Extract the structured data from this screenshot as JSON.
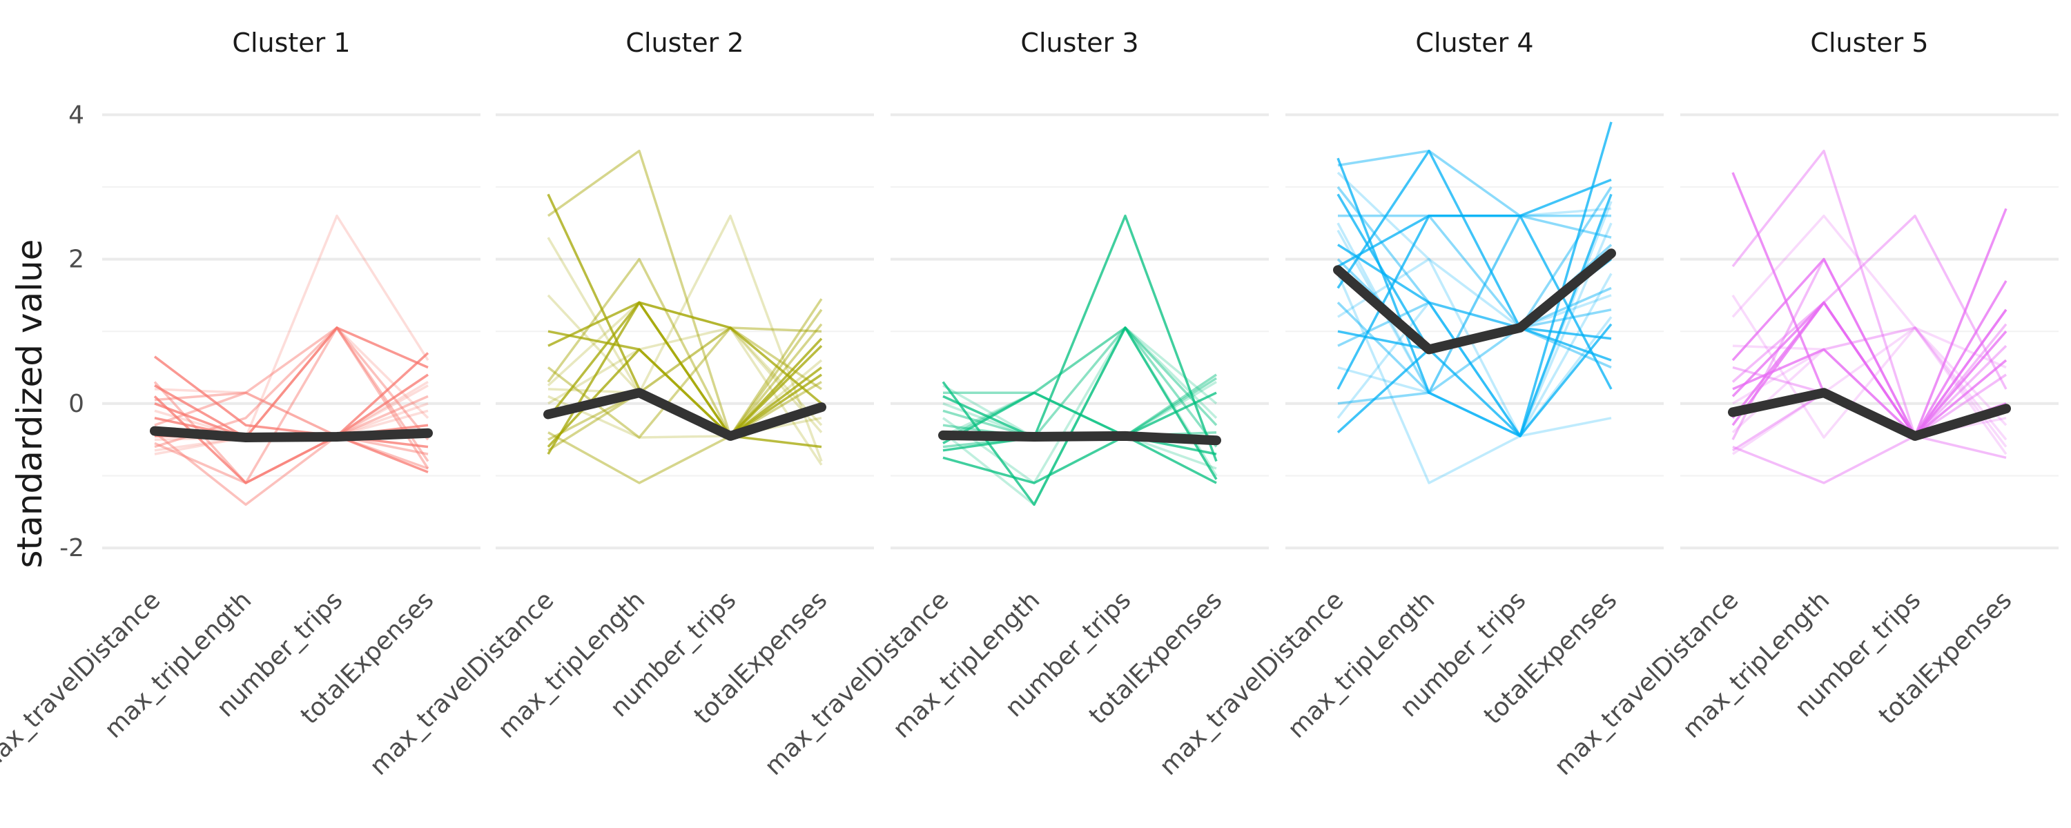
{
  "chart_data": {
    "type": "line",
    "subtype": "faceted-parallel-coordinates",
    "ylabel": "standardized value",
    "xlabel": "",
    "ylim": [
      -2.2,
      4.3
    ],
    "y_ticks": [
      4,
      2,
      0,
      -2
    ],
    "y_tick_labels": [
      "4",
      "2",
      "0",
      "-2"
    ],
    "grid": true,
    "categories": [
      "max_travelDistance",
      "max_tripLength",
      "number_trips",
      "totalExpenses"
    ],
    "mean_line_color": "#333333",
    "facets": [
      {
        "name": "Cluster 1",
        "color": "#F8766D",
        "mean": [
          -0.38,
          -0.47,
          -0.46,
          -0.41
        ],
        "profiles": [
          [
            0.65,
            -0.3,
            -0.45,
            0.7
          ],
          [
            0.3,
            -1.1,
            1.05,
            -0.9
          ],
          [
            0.2,
            0.15,
            -0.45,
            0.3
          ],
          [
            -0.2,
            -0.47,
            1.05,
            0.5
          ],
          [
            -0.4,
            -1.4,
            -0.45,
            0.1
          ],
          [
            -0.5,
            -0.47,
            2.6,
            0.6
          ],
          [
            0.0,
            -0.47,
            -0.45,
            -0.95
          ],
          [
            -0.6,
            -0.2,
            1.05,
            -0.5
          ],
          [
            -0.7,
            -0.47,
            -0.45,
            0.0
          ],
          [
            0.1,
            -1.1,
            -0.45,
            -0.6
          ],
          [
            -0.3,
            0.15,
            1.05,
            -0.8
          ],
          [
            -0.65,
            -0.47,
            -0.45,
            0.25
          ],
          [
            0.25,
            -0.47,
            -0.45,
            -0.3
          ],
          [
            -0.55,
            -1.1,
            -0.45,
            -0.7
          ],
          [
            -0.1,
            -0.47,
            1.05,
            -0.2
          ],
          [
            -0.45,
            -0.47,
            -0.45,
            0.4
          ],
          [
            0.05,
            0.15,
            -0.45,
            -0.9
          ],
          [
            -0.35,
            -0.47,
            -0.45,
            -0.1
          ]
        ]
      },
      {
        "name": "Cluster 2",
        "color": "#A3A500",
        "mean": [
          -0.15,
          0.15,
          -0.45,
          -0.05
        ],
        "profiles": [
          [
            2.9,
            0.2,
            -0.45,
            0.9
          ],
          [
            2.6,
            3.5,
            -0.45,
            1.3
          ],
          [
            2.3,
            0.15,
            2.6,
            -0.8
          ],
          [
            0.8,
            1.4,
            1.05,
            0.0
          ],
          [
            0.3,
            2.0,
            -0.45,
            1.1
          ],
          [
            0.0,
            0.75,
            1.05,
            -0.3
          ],
          [
            -0.7,
            1.4,
            -0.45,
            0.5
          ],
          [
            -0.4,
            -1.1,
            -0.45,
            1.45
          ],
          [
            0.2,
            0.15,
            1.05,
            -0.85
          ],
          [
            -0.6,
            0.75,
            -0.45,
            0.8
          ],
          [
            0.5,
            -0.47,
            1.05,
            0.2
          ],
          [
            1.5,
            0.15,
            -0.45,
            0.6
          ],
          [
            -0.2,
            1.4,
            -0.45,
            -0.6
          ],
          [
            -0.5,
            0.15,
            1.05,
            1.0
          ],
          [
            0.1,
            -0.47,
            -0.45,
            -0.2
          ],
          [
            1.0,
            0.75,
            -0.45,
            0.4
          ],
          [
            -0.65,
            0.15,
            -0.45,
            0.3
          ],
          [
            0.25,
            1.4,
            1.05,
            -0.4
          ]
        ]
      },
      {
        "name": "Cluster 3",
        "color": "#00BF7D",
        "mean": [
          -0.44,
          -0.46,
          -0.45,
          -0.51
        ],
        "profiles": [
          [
            0.3,
            -1.4,
            1.05,
            -1.05
          ],
          [
            0.15,
            0.15,
            -0.45,
            0.4
          ],
          [
            -0.2,
            -1.1,
            1.05,
            0.0
          ],
          [
            -0.65,
            -0.47,
            2.6,
            -0.8
          ],
          [
            -0.5,
            0.15,
            1.05,
            -0.3
          ],
          [
            0.0,
            -0.47,
            -0.45,
            0.3
          ],
          [
            -0.75,
            -1.1,
            -0.45,
            -1.1
          ],
          [
            -0.3,
            -0.47,
            1.05,
            -0.6
          ],
          [
            0.25,
            -0.47,
            -0.45,
            -0.9
          ],
          [
            -0.55,
            0.15,
            -0.45,
            0.15
          ],
          [
            -0.1,
            -0.47,
            -0.45,
            -0.4
          ],
          [
            -0.4,
            -1.4,
            1.05,
            -0.2
          ],
          [
            0.1,
            -0.47,
            -0.45,
            -0.7
          ],
          [
            -0.6,
            -0.47,
            -0.45,
            0.35
          ],
          [
            -0.45,
            0.15,
            1.05,
            -1.0
          ]
        ]
      },
      {
        "name": "Cluster 4",
        "color": "#00B0F6",
        "mean": [
          1.85,
          0.75,
          1.05,
          2.08
        ],
        "profiles": [
          [
            3.4,
            0.15,
            -0.45,
            3.9
          ],
          [
            3.3,
            3.5,
            2.6,
            2.6
          ],
          [
            3.2,
            2.0,
            1.05,
            1.5
          ],
          [
            2.9,
            0.75,
            -0.45,
            2.9
          ],
          [
            2.6,
            2.6,
            1.05,
            0.5
          ],
          [
            2.4,
            0.15,
            2.6,
            2.7
          ],
          [
            2.2,
            1.4,
            -0.45,
            1.1
          ],
          [
            2.0,
            0.75,
            1.05,
            3.0
          ],
          [
            1.8,
            -1.1,
            -0.45,
            1.8
          ],
          [
            1.6,
            3.5,
            1.05,
            0.9
          ],
          [
            1.4,
            0.15,
            2.6,
            2.3
          ],
          [
            1.2,
            2.0,
            -0.45,
            -0.2
          ],
          [
            1.0,
            0.75,
            1.05,
            2.0
          ],
          [
            0.8,
            1.4,
            1.05,
            1.3
          ],
          [
            0.5,
            0.15,
            -0.45,
            2.5
          ],
          [
            0.2,
            2.6,
            2.6,
            0.2
          ],
          [
            0.0,
            0.15,
            1.05,
            1.6
          ],
          [
            -0.2,
            1.4,
            -0.45,
            2.8
          ],
          [
            -0.4,
            0.75,
            1.05,
            0.6
          ],
          [
            3.0,
            1.4,
            1.05,
            2.2
          ],
          [
            2.5,
            0.15,
            -0.45,
            1.2
          ],
          [
            1.9,
            2.6,
            2.6,
            3.1
          ]
        ]
      },
      {
        "name": "Cluster 5",
        "color": "#E76BF3",
        "mean": [
          -0.12,
          0.15,
          -0.45,
          -0.07
        ],
        "profiles": [
          [
            3.2,
            0.15,
            -0.45,
            0.6
          ],
          [
            1.9,
            3.5,
            -0.45,
            1.3
          ],
          [
            1.2,
            2.6,
            1.05,
            -0.5
          ],
          [
            0.6,
            2.0,
            -0.45,
            1.7
          ],
          [
            0.3,
            1.4,
            2.6,
            0.2
          ],
          [
            0.0,
            0.75,
            1.05,
            -0.7
          ],
          [
            -0.3,
            1.4,
            -0.45,
            2.7
          ],
          [
            -0.6,
            -1.1,
            -0.45,
            0.8
          ],
          [
            -0.7,
            0.15,
            1.05,
            -0.3
          ],
          [
            0.2,
            0.75,
            -0.45,
            1.0
          ],
          [
            -0.5,
            2.0,
            -0.45,
            0.4
          ],
          [
            1.5,
            -0.47,
            1.05,
            -0.6
          ],
          [
            -0.2,
            1.4,
            -0.45,
            1.3
          ],
          [
            0.5,
            0.15,
            -0.45,
            -0.75
          ],
          [
            -0.4,
            0.75,
            1.05,
            0.5
          ],
          [
            0.1,
            1.4,
            -0.45,
            0.0
          ],
          [
            -0.65,
            0.15,
            -0.45,
            1.1
          ],
          [
            0.8,
            0.75,
            -0.45,
            -0.2
          ]
        ]
      }
    ]
  }
}
